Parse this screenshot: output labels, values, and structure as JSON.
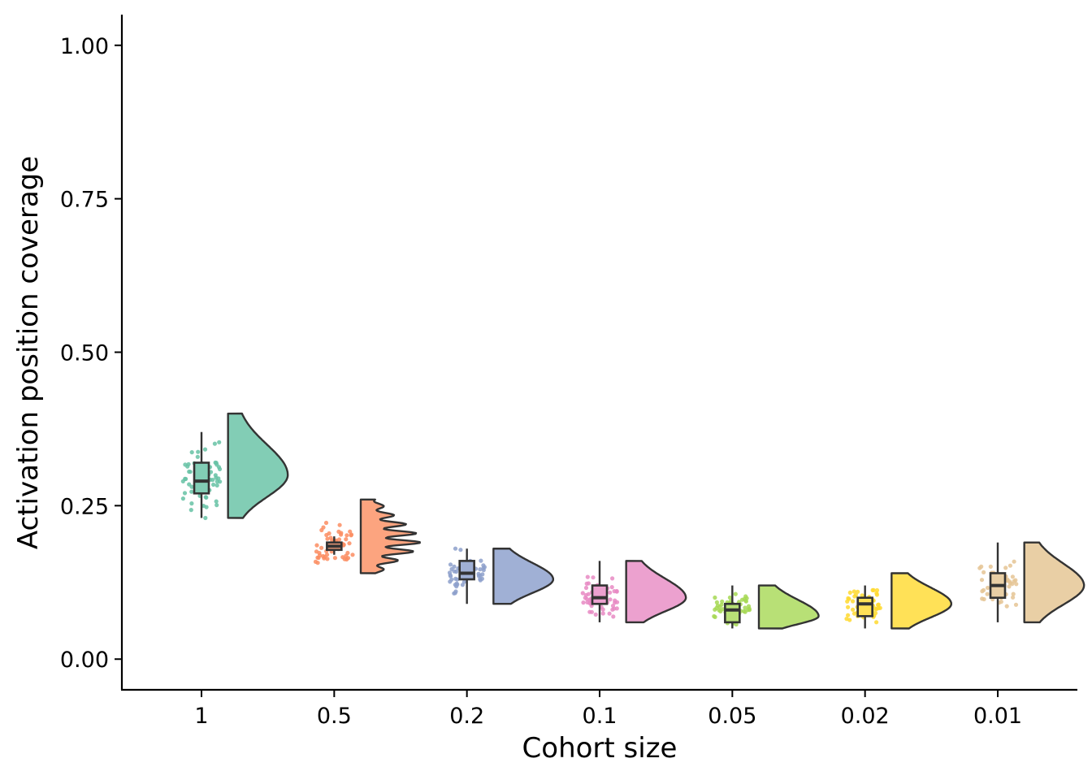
{
  "chart_data": {
    "type": "raincloud",
    "xlabel": "Cohort size",
    "ylabel": "Activation position coverage",
    "ylim": [
      -0.05,
      1.05
    ],
    "yticks": [
      0.0,
      0.25,
      0.5,
      0.75,
      1.0
    ],
    "ytick_labels": [
      "0.00",
      "0.25",
      "0.50",
      "0.75",
      "1.00"
    ],
    "grid": false,
    "legend": "none",
    "categories": [
      "1",
      "0.5",
      "0.2",
      "0.1",
      "0.05",
      "0.02",
      "0.01"
    ],
    "groups": [
      {
        "category": "1",
        "color": "#66c2a5",
        "fill": "#82cdb5",
        "box": {
          "min": 0.23,
          "q1": 0.27,
          "median": 0.29,
          "q3": 0.32,
          "max": 0.37
        },
        "range": [
          0.23,
          0.4
        ],
        "peak": 0.3,
        "density_width": 0.45,
        "spread": 0.04
      },
      {
        "category": "0.5",
        "color": "#fc8d62",
        "fill": "#fca47f",
        "box": {
          "min": 0.17,
          "q1": 0.178,
          "median": 0.184,
          "q3": 0.19,
          "max": 0.2
        },
        "range": [
          0.14,
          0.26
        ],
        "peak": 0.19,
        "density_width": 0.45,
        "spread": 0.02
      },
      {
        "category": "0.2",
        "color": "#8da0cb",
        "fill": "#a0b0d5",
        "box": {
          "min": 0.09,
          "q1": 0.13,
          "median": 0.14,
          "q3": 0.16,
          "max": 0.18
        },
        "range": [
          0.09,
          0.18
        ],
        "peak": 0.13,
        "density_width": 0.45,
        "spread": 0.02
      },
      {
        "category": "0.1",
        "color": "#e78ac3",
        "fill": "#eca1cf",
        "box": {
          "min": 0.06,
          "q1": 0.09,
          "median": 0.1,
          "q3": 0.12,
          "max": 0.16
        },
        "range": [
          0.06,
          0.16
        ],
        "peak": 0.1,
        "density_width": 0.45,
        "spread": 0.02
      },
      {
        "category": "0.05",
        "color": "#a6d854",
        "fill": "#b8e076",
        "box": {
          "min": 0.05,
          "q1": 0.06,
          "median": 0.08,
          "q3": 0.09,
          "max": 0.12
        },
        "range": [
          0.05,
          0.12
        ],
        "peak": 0.07,
        "density_width": 0.45,
        "spread": 0.018
      },
      {
        "category": "0.02",
        "color": "#ffd92f",
        "fill": "#ffe157",
        "box": {
          "min": 0.05,
          "q1": 0.07,
          "median": 0.09,
          "q3": 0.1,
          "max": 0.12
        },
        "range": [
          0.05,
          0.14
        ],
        "peak": 0.09,
        "density_width": 0.45,
        "spread": 0.018
      },
      {
        "category": "0.01",
        "color": "#e5c494",
        "fill": "#e9cfa5",
        "box": {
          "min": 0.06,
          "q1": 0.1,
          "median": 0.12,
          "q3": 0.14,
          "max": 0.19
        },
        "range": [
          0.06,
          0.19
        ],
        "peak": 0.12,
        "density_width": 0.45,
        "spread": 0.025
      }
    ]
  }
}
